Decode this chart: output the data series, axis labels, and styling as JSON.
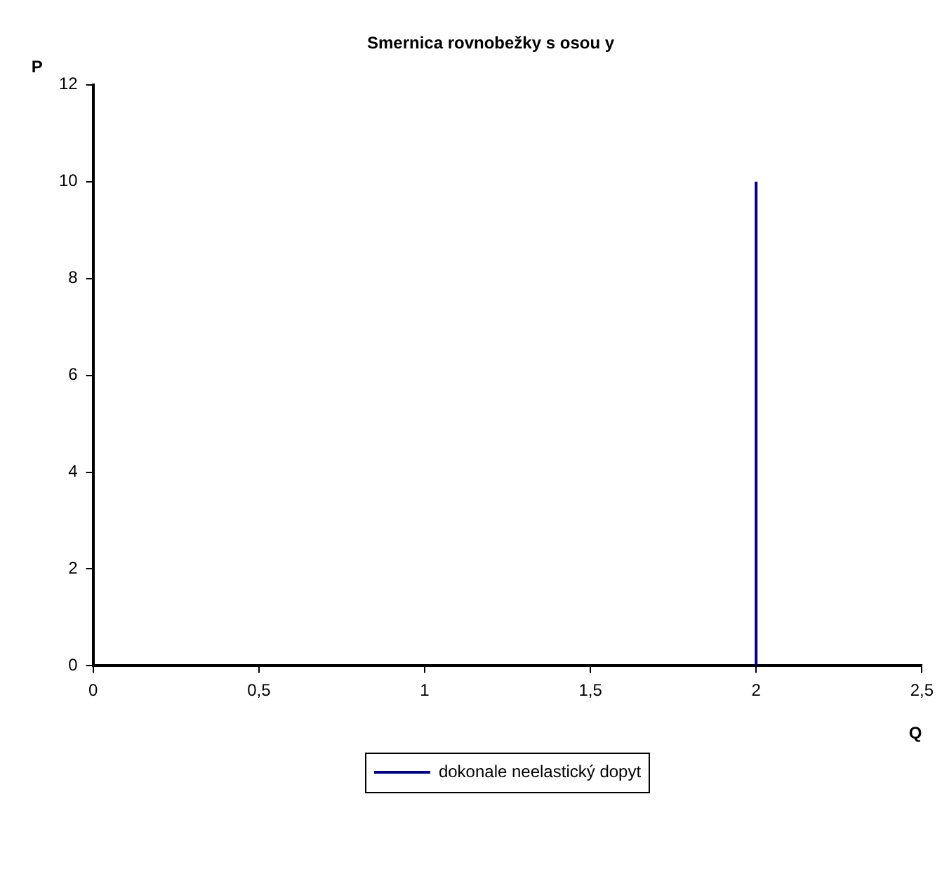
{
  "chart_data": {
    "type": "line",
    "title": "Smernica rovnobežky s osou y",
    "xlabel": "Q",
    "ylabel": "P",
    "x": [
      2,
      2
    ],
    "series": [
      {
        "name": "dokonale neelastický dopyt",
        "color": "#000080",
        "values": [
          0,
          10
        ]
      }
    ],
    "xlim": [
      0,
      2.5
    ],
    "xticks": [
      0,
      {
        "value": 0.5,
        "label": "0,5"
      },
      1,
      {
        "value": 1.5,
        "label": "1,5"
      },
      2,
      {
        "value": 2.5,
        "label": "2,5"
      }
    ],
    "ylim": [
      0,
      12
    ],
    "yticks": [
      0,
      2,
      4,
      6,
      8,
      10,
      12
    ],
    "grid": false,
    "legend": "bottom",
    "marker": "none",
    "line_style": "solid"
  }
}
